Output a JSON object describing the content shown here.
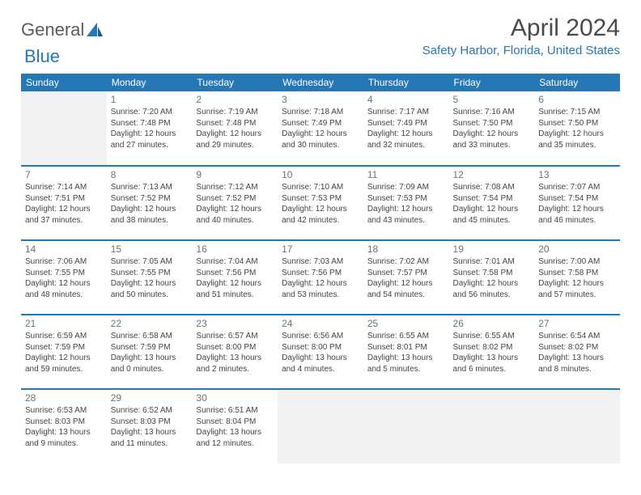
{
  "brand": {
    "word1": "General",
    "word2": "Blue",
    "logo_color": "#2578b5"
  },
  "title": "April 2024",
  "location": "Safety Harbor, Florida, United States",
  "colors": {
    "header_bg": "#2578b5",
    "header_text": "#ffffff",
    "rule": "#2578b5",
    "empty_bg": "#f2f2f2",
    "body_text": "#444",
    "title_text": "#4a4a4a"
  },
  "day_headers": [
    "Sunday",
    "Monday",
    "Tuesday",
    "Wednesday",
    "Thursday",
    "Friday",
    "Saturday"
  ],
  "weeks": [
    [
      null,
      {
        "n": "1",
        "sr": "7:20 AM",
        "ss": "7:48 PM",
        "dl": "12 hours and 27 minutes."
      },
      {
        "n": "2",
        "sr": "7:19 AM",
        "ss": "7:48 PM",
        "dl": "12 hours and 29 minutes."
      },
      {
        "n": "3",
        "sr": "7:18 AM",
        "ss": "7:49 PM",
        "dl": "12 hours and 30 minutes."
      },
      {
        "n": "4",
        "sr": "7:17 AM",
        "ss": "7:49 PM",
        "dl": "12 hours and 32 minutes."
      },
      {
        "n": "5",
        "sr": "7:16 AM",
        "ss": "7:50 PM",
        "dl": "12 hours and 33 minutes."
      },
      {
        "n": "6",
        "sr": "7:15 AM",
        "ss": "7:50 PM",
        "dl": "12 hours and 35 minutes."
      }
    ],
    [
      {
        "n": "7",
        "sr": "7:14 AM",
        "ss": "7:51 PM",
        "dl": "12 hours and 37 minutes."
      },
      {
        "n": "8",
        "sr": "7:13 AM",
        "ss": "7:52 PM",
        "dl": "12 hours and 38 minutes."
      },
      {
        "n": "9",
        "sr": "7:12 AM",
        "ss": "7:52 PM",
        "dl": "12 hours and 40 minutes."
      },
      {
        "n": "10",
        "sr": "7:10 AM",
        "ss": "7:53 PM",
        "dl": "12 hours and 42 minutes."
      },
      {
        "n": "11",
        "sr": "7:09 AM",
        "ss": "7:53 PM",
        "dl": "12 hours and 43 minutes."
      },
      {
        "n": "12",
        "sr": "7:08 AM",
        "ss": "7:54 PM",
        "dl": "12 hours and 45 minutes."
      },
      {
        "n": "13",
        "sr": "7:07 AM",
        "ss": "7:54 PM",
        "dl": "12 hours and 46 minutes."
      }
    ],
    [
      {
        "n": "14",
        "sr": "7:06 AM",
        "ss": "7:55 PM",
        "dl": "12 hours and 48 minutes."
      },
      {
        "n": "15",
        "sr": "7:05 AM",
        "ss": "7:55 PM",
        "dl": "12 hours and 50 minutes."
      },
      {
        "n": "16",
        "sr": "7:04 AM",
        "ss": "7:56 PM",
        "dl": "12 hours and 51 minutes."
      },
      {
        "n": "17",
        "sr": "7:03 AM",
        "ss": "7:56 PM",
        "dl": "12 hours and 53 minutes."
      },
      {
        "n": "18",
        "sr": "7:02 AM",
        "ss": "7:57 PM",
        "dl": "12 hours and 54 minutes."
      },
      {
        "n": "19",
        "sr": "7:01 AM",
        "ss": "7:58 PM",
        "dl": "12 hours and 56 minutes."
      },
      {
        "n": "20",
        "sr": "7:00 AM",
        "ss": "7:58 PM",
        "dl": "12 hours and 57 minutes."
      }
    ],
    [
      {
        "n": "21",
        "sr": "6:59 AM",
        "ss": "7:59 PM",
        "dl": "12 hours and 59 minutes."
      },
      {
        "n": "22",
        "sr": "6:58 AM",
        "ss": "7:59 PM",
        "dl": "13 hours and 0 minutes."
      },
      {
        "n": "23",
        "sr": "6:57 AM",
        "ss": "8:00 PM",
        "dl": "13 hours and 2 minutes."
      },
      {
        "n": "24",
        "sr": "6:56 AM",
        "ss": "8:00 PM",
        "dl": "13 hours and 4 minutes."
      },
      {
        "n": "25",
        "sr": "6:55 AM",
        "ss": "8:01 PM",
        "dl": "13 hours and 5 minutes."
      },
      {
        "n": "26",
        "sr": "6:55 AM",
        "ss": "8:02 PM",
        "dl": "13 hours and 6 minutes."
      },
      {
        "n": "27",
        "sr": "6:54 AM",
        "ss": "8:02 PM",
        "dl": "13 hours and 8 minutes."
      }
    ],
    [
      {
        "n": "28",
        "sr": "6:53 AM",
        "ss": "8:03 PM",
        "dl": "13 hours and 9 minutes."
      },
      {
        "n": "29",
        "sr": "6:52 AM",
        "ss": "8:03 PM",
        "dl": "13 hours and 11 minutes."
      },
      {
        "n": "30",
        "sr": "6:51 AM",
        "ss": "8:04 PM",
        "dl": "13 hours and 12 minutes."
      },
      null,
      null,
      null,
      null
    ]
  ],
  "labels": {
    "sunrise": "Sunrise: ",
    "sunset": "Sunset: ",
    "daylight": "Daylight: "
  }
}
